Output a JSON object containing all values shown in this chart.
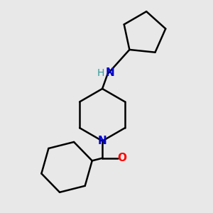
{
  "background_color": "#e8e8e8",
  "bond_color": "#000000",
  "N_color": "#0000cc",
  "NH_color": "#339999",
  "O_color": "#ff0000",
  "bond_width": 1.8,
  "figsize": [
    3.0,
    3.0
  ],
  "dpi": 100,
  "xlim": [
    0,
    10
  ],
  "ylim": [
    0,
    10
  ]
}
